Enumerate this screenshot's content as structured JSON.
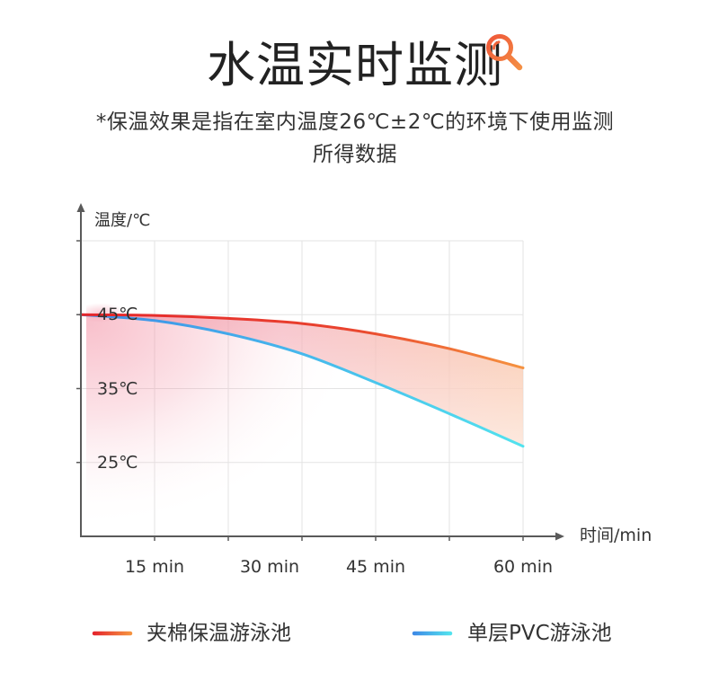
{
  "header": {
    "title": "水温实时监测",
    "subtitle_line1": "*保温效果是指在室内温度26℃±2℃的环境下使用监测",
    "subtitle_line2": "所得数据",
    "title_icon": "magnifier-icon",
    "title_icon_colors": [
      "#ee4f37",
      "#f59a46"
    ]
  },
  "chart_data": {
    "type": "line",
    "xlabel": "时间/min",
    "ylabel": "温度/℃",
    "xlim": [
      0,
      60
    ],
    "ylim": [
      15,
      55
    ],
    "x_ticks": [
      "15 min",
      "30 min",
      "45 min",
      "60 min"
    ],
    "y_ticks": [
      {
        "value": 45,
        "label": "45℃"
      },
      {
        "value": 35,
        "label": "35℃"
      },
      {
        "value": 25,
        "label": "25℃"
      }
    ],
    "grid": true,
    "legend_position": "bottom",
    "x": [
      0,
      10,
      20,
      30,
      40,
      50,
      60
    ],
    "series": [
      {
        "name": "夹棉保温游泳池",
        "values": [
          45.0,
          44.9,
          44.5,
          43.8,
          42.4,
          40.4,
          37.8
        ],
        "color_start": "#e5262c",
        "color_end": "#f5923f"
      },
      {
        "name": "单层PVC游泳池",
        "values": [
          45.0,
          44.2,
          42.4,
          39.7,
          35.8,
          31.6,
          27.2
        ],
        "color_start": "#3d8be6",
        "color_end": "#52e2ee"
      }
    ],
    "band_fill_colors": [
      "#ef7f95",
      "#f3a2ae",
      "#f8b591"
    ],
    "glow_color": "#f38fa3"
  }
}
